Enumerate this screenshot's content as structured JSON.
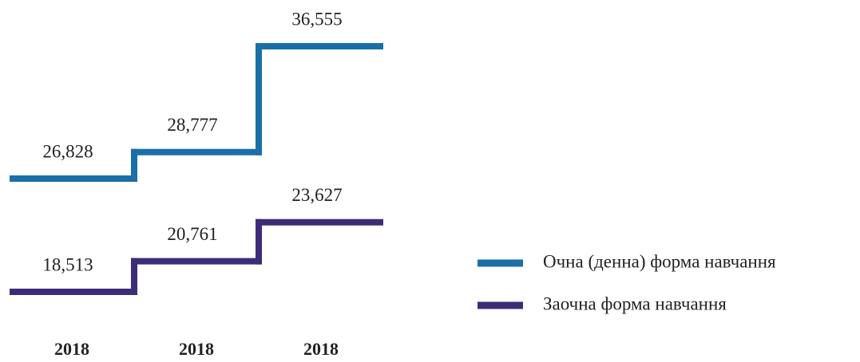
{
  "chart_data": {
    "type": "step",
    "categories": [
      "2018",
      "2018",
      "2018"
    ],
    "series": [
      {
        "name": "Очна (денна) форма навчання",
        "color": "#1a6fa8",
        "values": [
          26828,
          28777,
          36555
        ],
        "value_labels": [
          "26,828",
          "28,777",
          "36,555"
        ]
      },
      {
        "name": "Заочна форма навчання",
        "color": "#3d2c78",
        "values": [
          18513,
          20761,
          23627
        ],
        "value_labels": [
          "18,513",
          "20,761",
          "23,627"
        ]
      }
    ]
  }
}
